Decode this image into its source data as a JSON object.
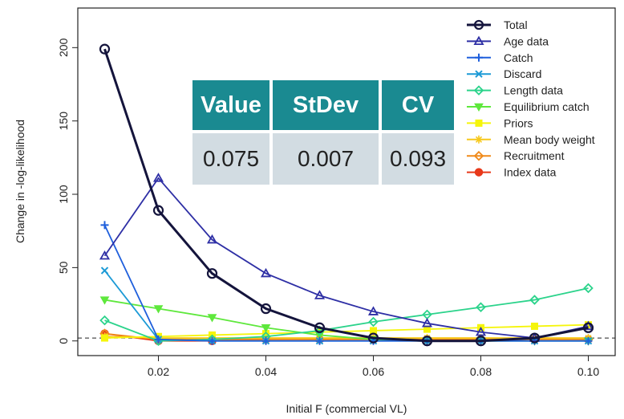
{
  "chart_data": {
    "type": "line",
    "title": "",
    "xlabel": "Initial F (commercial VL)",
    "ylabel": "Change in -log-likelihood",
    "xlim": [
      0.005,
      0.105
    ],
    "ylim": [
      -10,
      227
    ],
    "x_ticks": [
      "0.02",
      "0.04",
      "0.06",
      "0.08",
      "0.10"
    ],
    "y_ticks": [
      "0",
      "50",
      "100",
      "150",
      "200"
    ],
    "x": [
      0.01,
      0.02,
      0.03,
      0.04,
      0.05,
      0.06,
      0.07,
      0.08,
      0.09,
      0.1
    ],
    "grid": false,
    "legend_position": "top-right",
    "reference_line": {
      "y": 2,
      "style": "dashed"
    },
    "series": [
      {
        "name": "Total",
        "color": "#14143c",
        "marker": "circle",
        "values": [
          199,
          89,
          46,
          22,
          9,
          2,
          0,
          0,
          2,
          9
        ]
      },
      {
        "name": "Age data",
        "color": "#2e2fa5",
        "marker": "triangle",
        "values": [
          58,
          111,
          69,
          46,
          31,
          20,
          12,
          6,
          2,
          10
        ]
      },
      {
        "name": "Catch",
        "color": "#1f5fdc",
        "marker": "plus",
        "values": [
          79,
          1,
          0,
          0,
          0,
          0,
          0,
          0,
          0,
          0
        ]
      },
      {
        "name": "Discard",
        "color": "#1c9ad6",
        "marker": "x",
        "values": [
          48,
          1,
          0,
          0,
          0,
          0,
          0,
          0,
          0,
          0
        ]
      },
      {
        "name": "Length data",
        "color": "#2bd38b",
        "marker": "diamond",
        "values": [
          14,
          0,
          1,
          3,
          7,
          13,
          18,
          23,
          28,
          36
        ]
      },
      {
        "name": "Equilibrium catch",
        "color": "#5ee83c",
        "marker": "triangle-down",
        "values": [
          28,
          22,
          16,
          9,
          4,
          1,
          0,
          0,
          0,
          0
        ]
      },
      {
        "name": "Priors",
        "color": "#f5f50a",
        "marker": "square",
        "values": [
          2,
          3,
          4,
          5,
          6,
          7,
          8,
          9,
          10,
          11
        ]
      },
      {
        "name": "Mean body weight",
        "color": "#f7c81b",
        "marker": "asterisk",
        "values": [
          3,
          2,
          2,
          2,
          2,
          2,
          2,
          2,
          2,
          2
        ]
      },
      {
        "name": "Recruitment",
        "color": "#f08a1a",
        "marker": "diamond",
        "values": [
          5,
          1,
          1,
          1,
          1,
          1,
          1,
          1,
          1,
          1
        ]
      },
      {
        "name": "Index data",
        "color": "#e8391a",
        "marker": "circle-filled",
        "values": [
          5,
          0,
          0,
          1,
          1,
          1,
          1,
          1,
          1,
          1
        ]
      }
    ]
  },
  "stats_table": {
    "headers": [
      "Value",
      "StDev",
      "CV"
    ],
    "values": [
      "0.075",
      "0.007",
      "0.093"
    ]
  }
}
